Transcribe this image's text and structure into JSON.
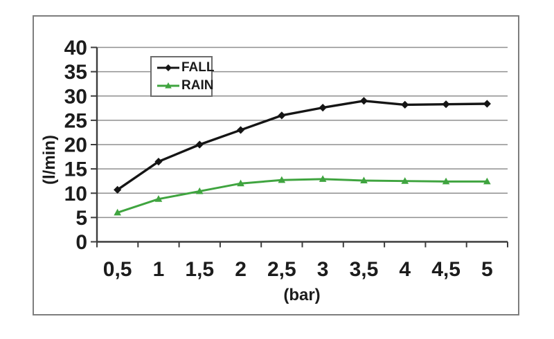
{
  "figure": {
    "background": "#ffffff",
    "frame_border_color": "#7d7d7d",
    "grid_color": "#8f8f8f",
    "axis_color": "#3c3c3c",
    "text_color": "#1c1c1c"
  },
  "chart_data": {
    "type": "line",
    "title": "",
    "xlabel": "(bar)",
    "ylabel": "(l/min)",
    "x": [
      0.5,
      1,
      1.5,
      2,
      2.5,
      3,
      3.5,
      4,
      4.5,
      5
    ],
    "x_tick_labels": [
      "0,5",
      "1",
      "1,5",
      "2",
      "2,5",
      "3",
      "3,5",
      "4",
      "4,5",
      "5"
    ],
    "y_ticks": [
      0,
      5,
      10,
      15,
      20,
      25,
      30,
      35,
      40
    ],
    "y_tick_labels": [
      "0",
      "5",
      "10",
      "15",
      "20",
      "25",
      "30",
      "35",
      "40"
    ],
    "ylim": [
      0,
      40
    ],
    "grid": true,
    "legend_position": "top-left-inside",
    "series": [
      {
        "name": "FALL",
        "color": "#151515",
        "marker": "diamond",
        "values": [
          10.7,
          16.5,
          20,
          23,
          26,
          27.6,
          29,
          28.2,
          28.3,
          28.4
        ]
      },
      {
        "name": "RAIN",
        "color": "#3fa43f",
        "marker": "triangle",
        "values": [
          6,
          8.8,
          10.4,
          12,
          12.7,
          12.9,
          12.6,
          12.5,
          12.4,
          12.4
        ]
      }
    ]
  },
  "legend": {
    "items": [
      {
        "label": "FALL"
      },
      {
        "label": "RAIN"
      }
    ]
  }
}
